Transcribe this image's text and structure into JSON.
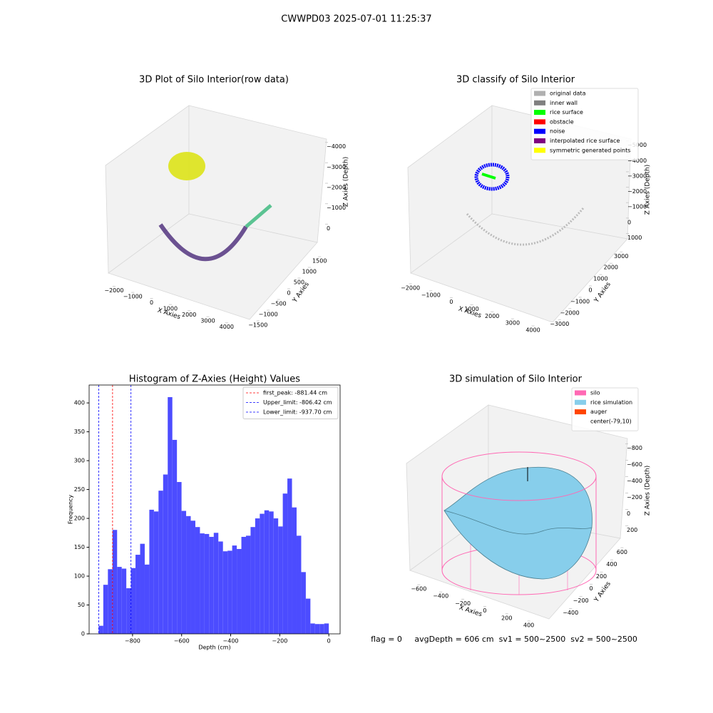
{
  "title": "CWWPD03 2025-07-01 11:25:37",
  "footer": "flag = 0     avgDepth = 606 cm  sv1 = 500~2500  sv2 = 500~2500",
  "chart_data": [
    {
      "type": "scatter3d",
      "title": "3D Plot of Silo Interior(row data)",
      "xlabel": "X Axies",
      "ylabel": "Y Axies",
      "zlabel": "Z Axies (Depth)",
      "xlim": [
        -2300,
        4500
      ],
      "ylim": [
        -1700,
        1700
      ],
      "zlim": [
        -4300,
        300
      ],
      "xticks": [
        {
          "value": -2000,
          "label": "−2000"
        },
        {
          "value": -1000,
          "label": "−1000"
        },
        0,
        1000,
        2000,
        3000,
        4000
      ],
      "yticks": [
        {
          "value": -1500,
          "label": "−1500"
        },
        {
          "value": -1000,
          "label": "−1000"
        },
        {
          "value": -500,
          "label": "−500"
        },
        0,
        500,
        1000,
        1500
      ],
      "zticks": [
        0,
        {
          "value": -1000,
          "label": "−1000"
        },
        {
          "value": -2000,
          "label": "−2000"
        },
        {
          "value": -3000,
          "label": "−3000"
        },
        {
          "value": -4000,
          "label": "−4000"
        }
      ]
    },
    {
      "type": "scatter3d",
      "title": "3D classify of Silo Interior",
      "xlabel": "X Axies",
      "ylabel": "Y Axies",
      "zlabel": "Z Axies (Depth)",
      "xlim": [
        -2300,
        4400
      ],
      "ylim": [
        -3400,
        3400
      ],
      "zlim": [
        -5400,
        1300
      ],
      "xticks": [
        {
          "value": -2000,
          "label": "−2000"
        },
        {
          "value": -1000,
          "label": "−1000"
        },
        0,
        1000,
        2000,
        3000,
        4000
      ],
      "yticks": [
        {
          "value": -3000,
          "label": "−3000"
        },
        {
          "value": -2000,
          "label": "−2000"
        },
        {
          "value": -1000,
          "label": "−1000"
        },
        0,
        1000,
        2000,
        3000
      ],
      "zticks": [
        1000,
        0,
        {
          "value": -1000,
          "label": "−1000"
        },
        {
          "value": -2000,
          "label": "−2000"
        },
        {
          "value": -3000,
          "label": "−3000"
        },
        {
          "value": -4000,
          "label": "−4000"
        },
        {
          "value": -5000,
          "label": "−5000"
        }
      ],
      "legend": [
        {
          "name": "original data",
          "color": "#b0b0b0"
        },
        {
          "name": "inner wall",
          "color": "#808080"
        },
        {
          "name": "rice surface",
          "color": "#00ff00"
        },
        {
          "name": "obstacle",
          "color": "#ff0000"
        },
        {
          "name": "noise",
          "color": "#0000ff"
        },
        {
          "name": "interpolated rice surface",
          "color": "#800080"
        },
        {
          "name": "symmetric generated points",
          "color": "#ffff00"
        }
      ]
    },
    {
      "type": "histogram",
      "title": "Histogram of Z-Axies (Height) Values",
      "xlabel": "Depth (cm)",
      "ylabel": "Frequency",
      "color": "#4c4cff",
      "bins": [
        -938,
        -919.24,
        -900.48,
        -881.72,
        -862.96,
        -844.2,
        -825.44,
        -806.68,
        -787.92,
        -769.16,
        -750.4,
        -731.64,
        -712.88,
        -694.12,
        -675.36,
        -656.6,
        -637.84,
        -619.08,
        -600.32,
        -581.56,
        -562.8,
        -544.04,
        -525.28,
        -506.52,
        -487.76,
        -469,
        -450.24,
        -431.48,
        -412.72,
        -393.96,
        -375.2,
        -356.44,
        -337.68,
        -318.92,
        -300.16,
        -281.4,
        -262.64,
        -243.88,
        -225.12,
        -206.36,
        -187.6,
        -168.84,
        -150.08,
        -131.32,
        -112.56,
        -93.8,
        -75.04,
        -56.28,
        -37.52,
        -18.76,
        0
      ],
      "counts": [
        14,
        85,
        112,
        180,
        116,
        113,
        79,
        114,
        137,
        156,
        120,
        215,
        212,
        248,
        276,
        410,
        336,
        263,
        213,
        204,
        196,
        185,
        174,
        173,
        168,
        175,
        160,
        143,
        144,
        153,
        147,
        168,
        170,
        185,
        200,
        208,
        214,
        212,
        200,
        186,
        243,
        269,
        219,
        170,
        107,
        61,
        18,
        17,
        17,
        18
      ],
      "lines": [
        {
          "name": "first_peak: -881.44 cm",
          "value": -881.44,
          "color": "#ff0000"
        },
        {
          "name": "Upper_limit: -806.42 cm",
          "value": -806.42,
          "color": "#0000ff"
        },
        {
          "name": "Lower_limit: -937.70 cm",
          "value": -937.7,
          "color": "#0000ff"
        }
      ],
      "xlim": [
        -977,
        46
      ],
      "ylim": [
        0,
        431
      ],
      "xticks": [
        {
          "value": -800,
          "label": "−800"
        },
        {
          "value": -600,
          "label": "−600"
        },
        {
          "value": -400,
          "label": "−400"
        },
        {
          "value": -200,
          "label": "−200"
        },
        0
      ],
      "yticks": [
        0,
        50,
        100,
        150,
        200,
        250,
        300,
        350,
        400
      ]
    },
    {
      "type": "surface3d",
      "title": "3D simulation of Silo Interior",
      "xlabel": "X Axies",
      "ylabel": "Y Axies",
      "zlabel": "Z Axies (Depth)",
      "xlim": [
        -680,
        480
      ],
      "ylim": [
        -500,
        650
      ],
      "zlim": [
        -900,
        300
      ],
      "xticks": [
        {
          "value": -600,
          "label": "−600"
        },
        {
          "value": -400,
          "label": "−400"
        },
        {
          "value": -200,
          "label": "−200"
        },
        0,
        200,
        400
      ],
      "yticks": [
        {
          "value": -400,
          "label": "−400"
        },
        {
          "value": -200,
          "label": "−200"
        },
        0,
        200,
        400,
        600
      ],
      "zticks": [
        200,
        0,
        {
          "value": -200,
          "label": "−200"
        },
        {
          "value": -400,
          "label": "−400"
        },
        {
          "value": -600,
          "label": "−600"
        },
        {
          "value": -800,
          "label": "−800"
        }
      ],
      "legend": [
        {
          "name": "silo",
          "color": "#ff69b4"
        },
        {
          "name": "rice simulation",
          "color": "#87ceeb"
        },
        {
          "name": "auger",
          "color": "#ff4500"
        },
        {
          "name": "center(-79,10)",
          "color": "#ffffff"
        }
      ]
    }
  ]
}
